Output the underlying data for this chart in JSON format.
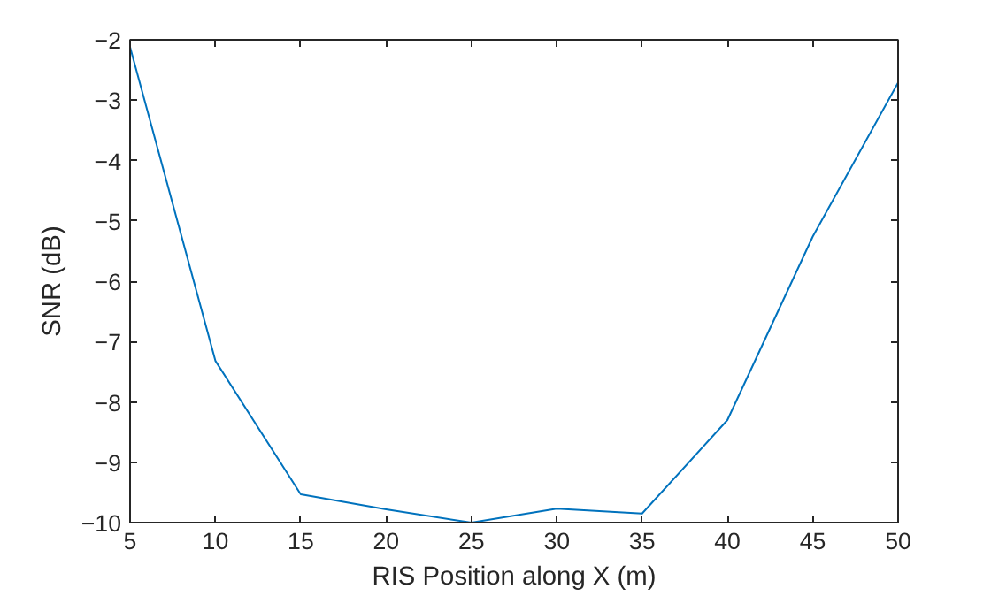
{
  "chart_data": {
    "type": "line",
    "xlabel": "RIS Position along X (m)",
    "ylabel": "SNR (dB)",
    "x": [
      5,
      10,
      15,
      20,
      25,
      30,
      35,
      40,
      45,
      50
    ],
    "series": [
      {
        "color": "#0072bd",
        "values": [
          -2.12,
          -7.32,
          -9.53,
          -9.78,
          -10.0,
          -9.77,
          -9.85,
          -8.3,
          -5.26,
          -2.71
        ]
      }
    ],
    "xlim": [
      5,
      50
    ],
    "ylim": [
      -10,
      -2
    ],
    "xticks": [
      5,
      10,
      15,
      20,
      25,
      30,
      35,
      40,
      45,
      50
    ],
    "yticks": [
      -10,
      -9,
      -8,
      -7,
      -6,
      -5,
      -4,
      -3,
      -2
    ],
    "grid": false,
    "marker": "none",
    "line_style": "solid"
  }
}
